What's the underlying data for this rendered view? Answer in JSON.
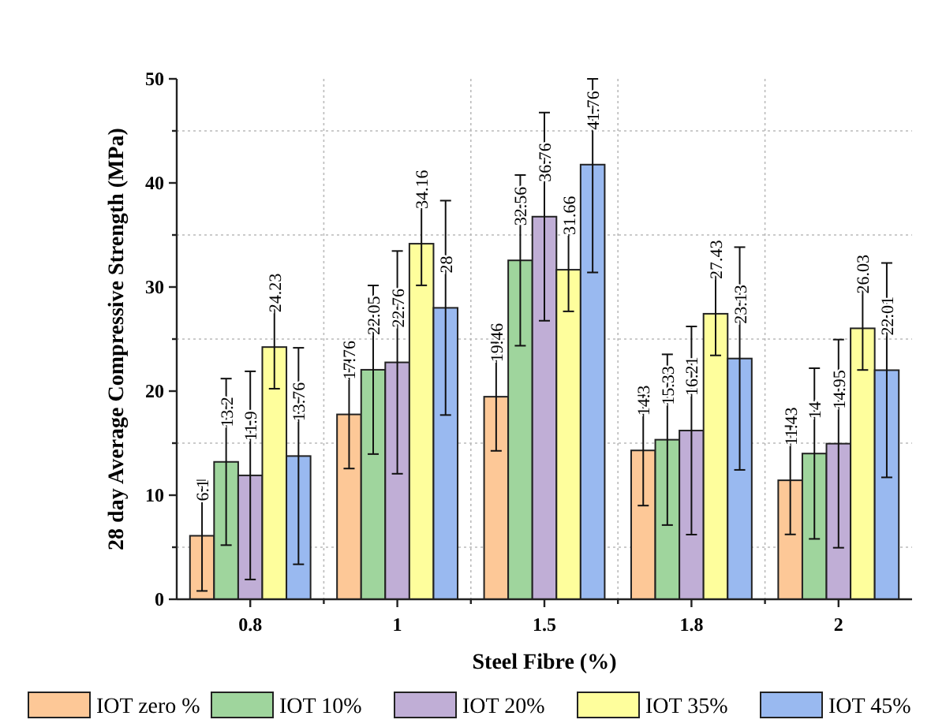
{
  "chart_data": {
    "type": "bar",
    "xlabel": "Steel Fibre (%)",
    "ylabel": "28 day Average Compressive Strength (MPa)",
    "categories": [
      "0.8",
      "1",
      "1.5",
      "1.8",
      "2"
    ],
    "ylim": [
      0,
      50
    ],
    "yticks": [
      0,
      10,
      20,
      30,
      40,
      50
    ],
    "grid": true,
    "legend": "bottom",
    "data_labels": true,
    "series": [
      {
        "name": "IOT zero %",
        "color": "#fdc897",
        "values": [
          6.1,
          17.76,
          19.46,
          14.3,
          11.43
        ],
        "errors": [
          5.3,
          5.2,
          5.2,
          5.3,
          5.2
        ]
      },
      {
        "name": "IOT 10%",
        "color": "#9fd59d",
        "values": [
          13.2,
          22.05,
          32.56,
          15.33,
          14
        ],
        "errors": [
          8,
          8.1,
          8.2,
          8.2,
          8.2
        ]
      },
      {
        "name": "IOT 20%",
        "color": "#c0aed6",
        "values": [
          11.9,
          22.76,
          36.76,
          16.21,
          14.95
        ],
        "errors": [
          10,
          10.7,
          10,
          10,
          10
        ]
      },
      {
        "name": "IOT 35%",
        "color": "#fefe9c",
        "values": [
          24.23,
          34.16,
          31.66,
          27.43,
          26.03
        ],
        "errors": [
          4,
          4,
          4,
          4,
          4
        ]
      },
      {
        "name": "IOT 45%",
        "color": "#99b9f0",
        "values": [
          13.76,
          28,
          41.76,
          23.13,
          22.01
        ],
        "errors": [
          10.4,
          10.3,
          [
            31.4,
            50
          ],
          10.7,
          10.3
        ]
      }
    ]
  }
}
